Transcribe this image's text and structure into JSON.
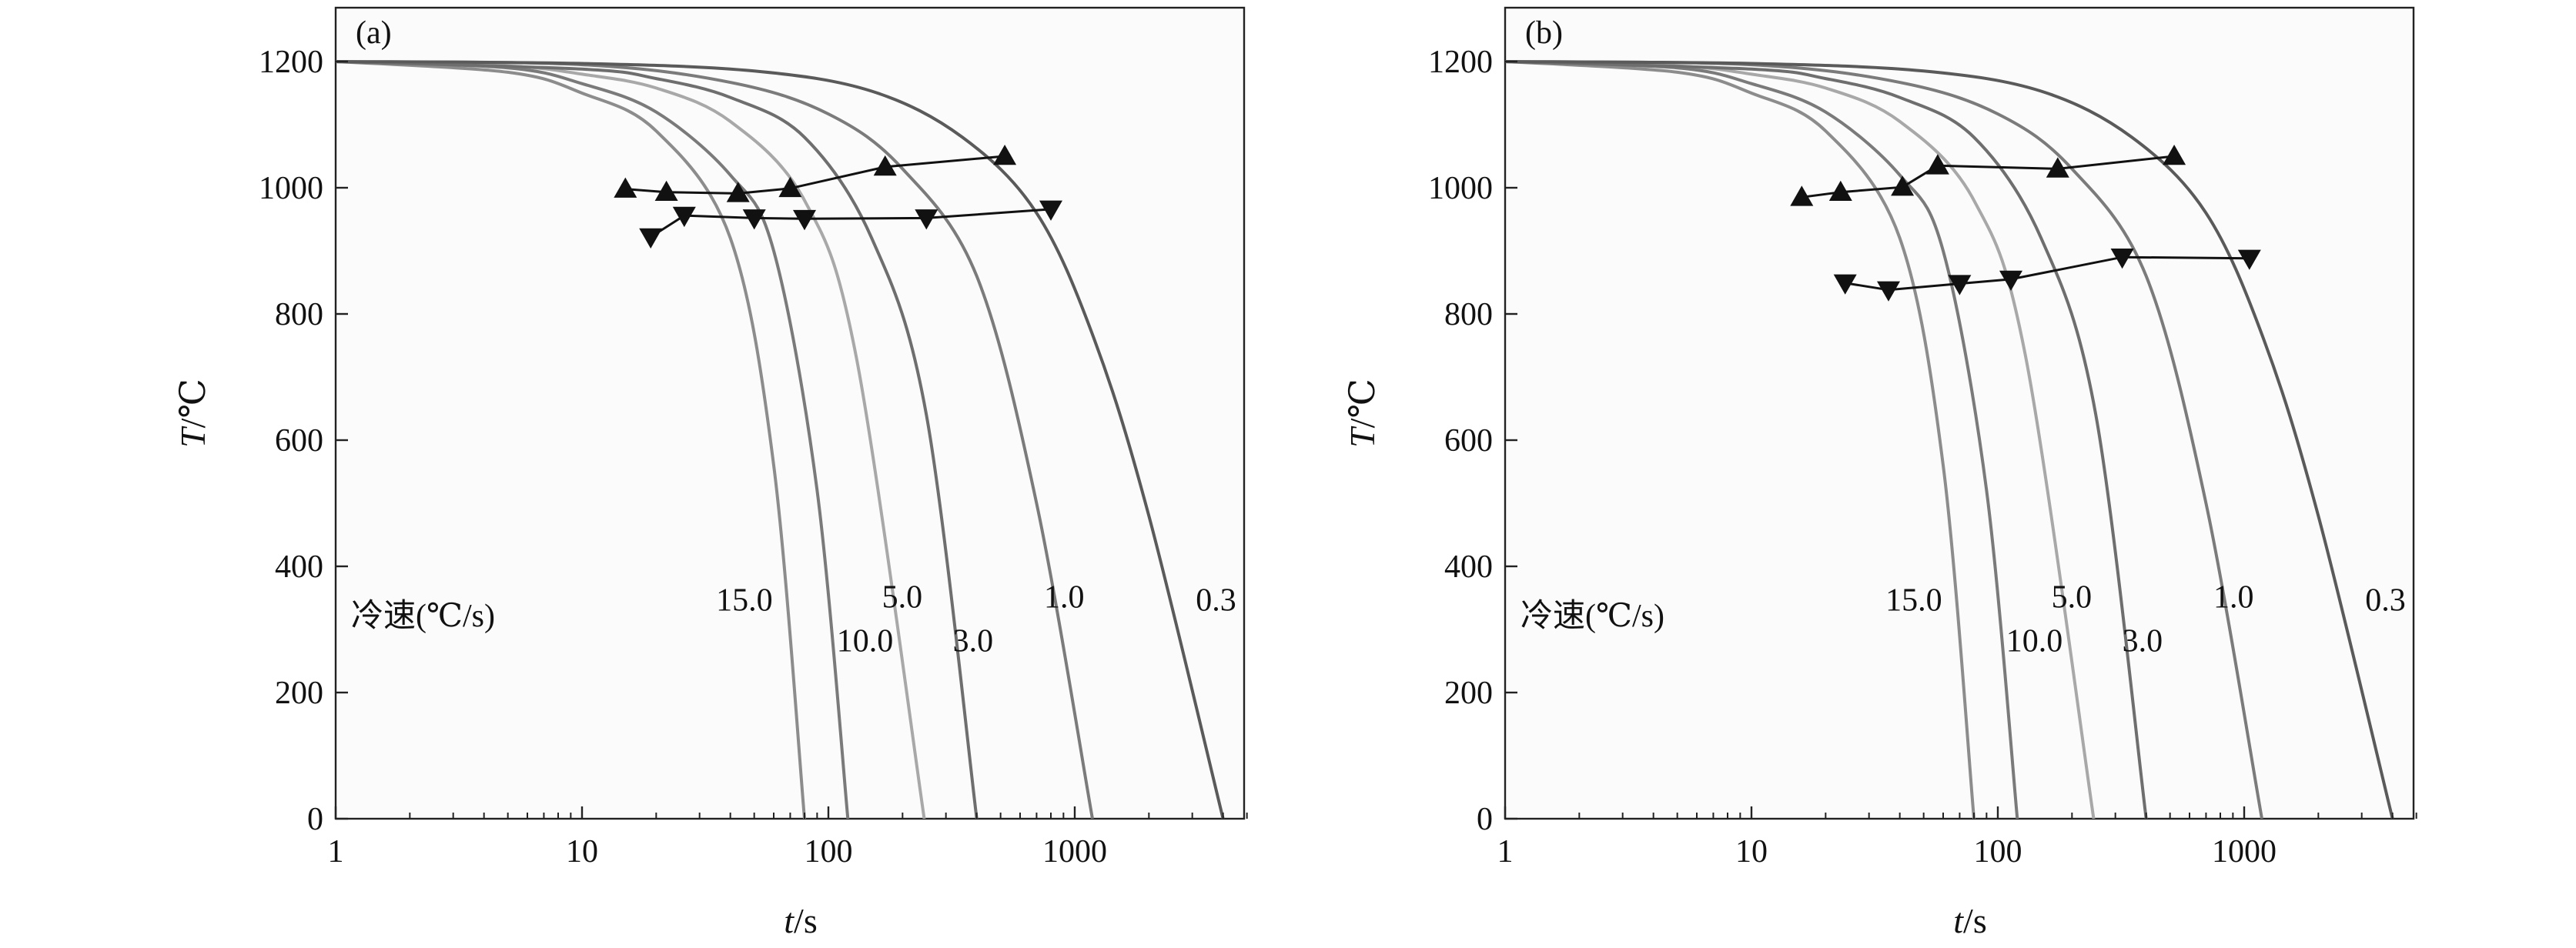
{
  "colors": {
    "background": "#fbfbfb",
    "axes": "#222222",
    "markers": "#111111"
  },
  "chart_data": [
    {
      "type": "line",
      "panel_label": "(a)",
      "xlabel": "t/s",
      "ylabel": "T/℃",
      "x_scale": "log",
      "xlim": [
        1,
        5000
      ],
      "ylim": [
        0,
        1300
      ],
      "x_ticks": [
        "1",
        "10",
        "100",
        "1000"
      ],
      "y_ticks": [
        "0",
        "200",
        "400",
        "600",
        "800",
        "1000",
        "1200"
      ],
      "legend_title": "冷速(℃/s)",
      "series": [
        {
          "name": "15.0",
          "color": "#8c8c8c",
          "points": [
            [
              1,
              1200
            ],
            [
              5,
              1183
            ],
            [
              10,
              1150
            ],
            [
              20,
              1090
            ],
            [
              40,
              920
            ],
            [
              60,
              560
            ],
            [
              80,
              0
            ]
          ]
        },
        {
          "name": "10.0",
          "color": "#7a7a7a",
          "points": [
            [
              1,
              1200
            ],
            [
              5,
              1190
            ],
            [
              10,
              1165
            ],
            [
              20,
              1120
            ],
            [
              40,
              1020
            ],
            [
              60,
              900
            ],
            [
              90,
              520
            ],
            [
              120,
              0
            ]
          ]
        },
        {
          "name": "5.0",
          "color": "#a8a8a8",
          "points": [
            [
              1,
              1200
            ],
            [
              5,
              1193
            ],
            [
              10,
              1180
            ],
            [
              20,
              1158
            ],
            [
              40,
              1105
            ],
            [
              80,
              980
            ],
            [
              130,
              730
            ],
            [
              245,
              0
            ]
          ]
        },
        {
          "name": "3.0",
          "color": "#6e6e6e",
          "points": [
            [
              1,
              1200
            ],
            [
              10,
              1188
            ],
            [
              20,
              1173
            ],
            [
              40,
              1143
            ],
            [
              80,
              1080
            ],
            [
              150,
              920
            ],
            [
              250,
              640
            ],
            [
              400,
              0
            ]
          ]
        },
        {
          "name": "1.0",
          "color": "#7b7b7b",
          "points": [
            [
              1,
              1200
            ],
            [
              10,
              1195
            ],
            [
              40,
              1167
            ],
            [
              100,
              1117
            ],
            [
              200,
              1030
            ],
            [
              400,
              860
            ],
            [
              700,
              500
            ],
            [
              1180,
              0
            ]
          ]
        },
        {
          "name": "0.3",
          "color": "#5a5a5a",
          "points": [
            [
              1,
              1200
            ],
            [
              10,
              1197
            ],
            [
              50,
              1185
            ],
            [
              150,
              1153
            ],
            [
              350,
              1080
            ],
            [
              700,
              960
            ],
            [
              1200,
              760
            ],
            [
              2000,
              480
            ],
            [
              4000,
              0
            ]
          ]
        }
      ],
      "marker_series": [
        {
          "marker": "triangle-up",
          "points": [
            [
              15,
              998
            ],
            [
              22,
              993
            ],
            [
              43,
              991
            ],
            [
              70,
              999
            ],
            [
              170,
              1033
            ],
            [
              520,
              1050
            ]
          ]
        },
        {
          "marker": "triangle-down",
          "points": [
            [
              19,
              922
            ],
            [
              26,
              956
            ],
            [
              50,
              952
            ],
            [
              80,
              951
            ],
            [
              250,
              952
            ],
            [
              800,
              966
            ]
          ]
        }
      ],
      "rate_labels": [
        {
          "text": "15.0",
          "x": 35,
          "y": 330
        },
        {
          "text": "10.0",
          "x": 108,
          "y": 265
        },
        {
          "text": "5.0",
          "x": 165,
          "y": 335
        },
        {
          "text": "3.0",
          "x": 320,
          "y": 265
        },
        {
          "text": "1.0",
          "x": 750,
          "y": 335
        },
        {
          "text": "0.3",
          "x": 3100,
          "y": 330
        }
      ]
    },
    {
      "type": "line",
      "panel_label": "(b)",
      "xlabel": "t/s",
      "ylabel": "T/℃",
      "x_scale": "log",
      "xlim": [
        1,
        5000
      ],
      "ylim": [
        0,
        1300
      ],
      "x_ticks": [
        "1",
        "10",
        "100",
        "1000"
      ],
      "y_ticks": [
        "0",
        "200",
        "400",
        "600",
        "800",
        "1000",
        "1200"
      ],
      "legend_title": "冷速(℃/s)",
      "series": [
        {
          "name": "15.0",
          "color": "#8c8c8c",
          "points": [
            [
              1,
              1200
            ],
            [
              5,
              1183
            ],
            [
              10,
              1150
            ],
            [
              20,
              1090
            ],
            [
              40,
              920
            ],
            [
              60,
              560
            ],
            [
              80,
              0
            ]
          ]
        },
        {
          "name": "10.0",
          "color": "#7a7a7a",
          "points": [
            [
              1,
              1200
            ],
            [
              5,
              1190
            ],
            [
              10,
              1165
            ],
            [
              20,
              1120
            ],
            [
              40,
              1020
            ],
            [
              60,
              900
            ],
            [
              90,
              520
            ],
            [
              120,
              0
            ]
          ]
        },
        {
          "name": "5.0",
          "color": "#a8a8a8",
          "points": [
            [
              1,
              1200
            ],
            [
              5,
              1193
            ],
            [
              10,
              1180
            ],
            [
              20,
              1158
            ],
            [
              40,
              1105
            ],
            [
              80,
              980
            ],
            [
              130,
              730
            ],
            [
              245,
              0
            ]
          ]
        },
        {
          "name": "3.0",
          "color": "#6e6e6e",
          "points": [
            [
              1,
              1200
            ],
            [
              10,
              1188
            ],
            [
              20,
              1173
            ],
            [
              40,
              1143
            ],
            [
              80,
              1080
            ],
            [
              150,
              920
            ],
            [
              250,
              640
            ],
            [
              400,
              0
            ]
          ]
        },
        {
          "name": "1.0",
          "color": "#7b7b7b",
          "points": [
            [
              1,
              1200
            ],
            [
              10,
              1195
            ],
            [
              40,
              1167
            ],
            [
              100,
              1117
            ],
            [
              200,
              1030
            ],
            [
              400,
              860
            ],
            [
              700,
              500
            ],
            [
              1180,
              0
            ]
          ]
        },
        {
          "name": "0.3",
          "color": "#5a5a5a",
          "points": [
            [
              1,
              1200
            ],
            [
              10,
              1197
            ],
            [
              50,
              1185
            ],
            [
              150,
              1153
            ],
            [
              350,
              1080
            ],
            [
              700,
              960
            ],
            [
              1200,
              760
            ],
            [
              2000,
              480
            ],
            [
              4000,
              0
            ]
          ]
        }
      ],
      "marker_series": [
        {
          "marker": "triangle-up",
          "points": [
            [
              16,
              985
            ],
            [
              23,
              993
            ],
            [
              41,
              1001
            ],
            [
              57,
              1035
            ],
            [
              175,
              1030
            ],
            [
              520,
              1050
            ]
          ]
        },
        {
          "marker": "triangle-down",
          "points": [
            [
              24,
              849
            ],
            [
              36,
              838
            ],
            [
              70,
              848
            ],
            [
              113,
              855
            ],
            [
              320,
              890
            ],
            [
              1050,
              888
            ]
          ]
        }
      ],
      "rate_labels": [
        {
          "text": "15.0",
          "x": 35,
          "y": 330
        },
        {
          "text": "10.0",
          "x": 108,
          "y": 265
        },
        {
          "text": "5.0",
          "x": 165,
          "y": 335
        },
        {
          "text": "3.0",
          "x": 320,
          "y": 265
        },
        {
          "text": "1.0",
          "x": 750,
          "y": 335
        },
        {
          "text": "0.3",
          "x": 3100,
          "y": 330
        }
      ]
    }
  ]
}
